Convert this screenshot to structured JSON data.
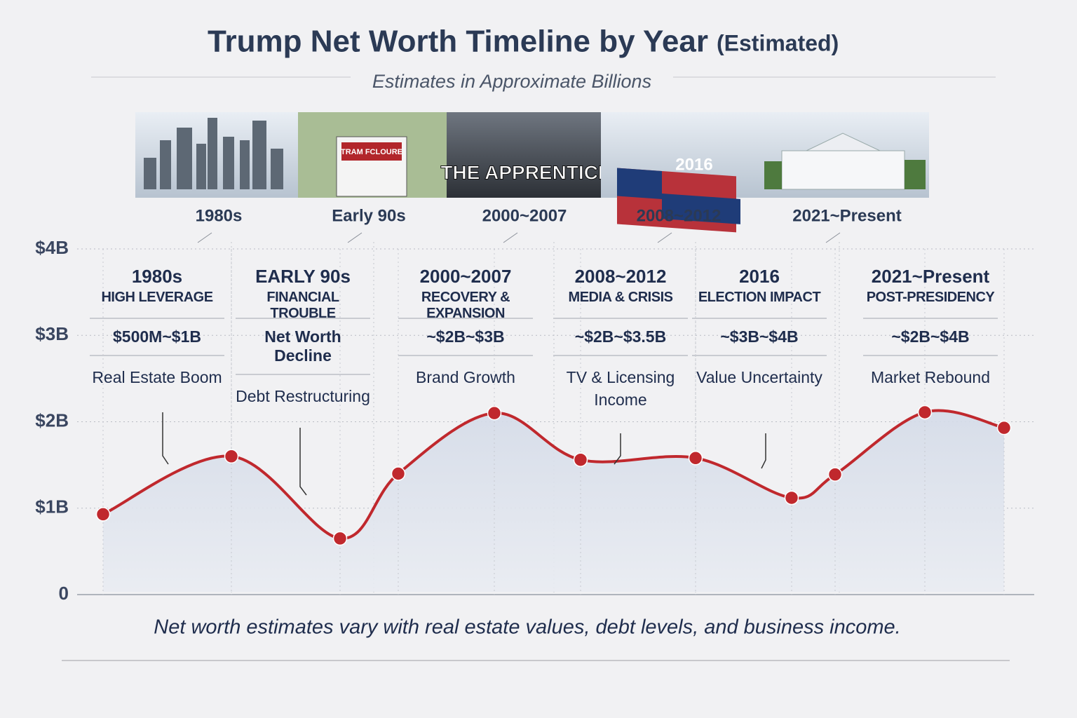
{
  "chart_data": {
    "type": "line",
    "title": "Trump Net Worth Timeline by Year",
    "title_note": "(Estimated)",
    "subtitle": "Estimates in Approximate Billions",
    "timeline": [
      {
        "label": "1980s"
      },
      {
        "label": "Early 90s",
        "sign": "TRAM FCLOURE"
      },
      {
        "label": "2000~2007",
        "banner": "THE APPRENTICE"
      },
      {
        "label": "2008~2012",
        "banner": "2016"
      },
      {
        "label": "2021~Present"
      }
    ],
    "annotations": [
      {
        "era": "1980s",
        "theme": "HIGH LEVERAGE",
        "range": "$500M~$1B",
        "note": "Real Estate Boom"
      },
      {
        "era": "EARLY 90s",
        "theme": "FINANCIAL TROUBLE",
        "range": "Net Worth Decline",
        "note": "Debt Restructuring"
      },
      {
        "era": "2000~2007",
        "theme": "RECOVERY & EXPANSION",
        "range": "~$2B~$3B",
        "note": "Brand Growth"
      },
      {
        "era": "2008~2012",
        "theme": "MEDIA & CRISIS",
        "range": "~$2B~$3.5B",
        "note": "TV & Licensing Income"
      },
      {
        "era": "2016",
        "theme": "ELECTION IMPACT",
        "range": "~$3B~$4B",
        "note": "Value Uncertainty"
      },
      {
        "era": "2021~Present",
        "theme": "POST-PRESIDENCY",
        "range": "~$2B~$4B",
        "note": "Market Rebound"
      }
    ],
    "categories": [
      null,
      null,
      null,
      null,
      null,
      null,
      null,
      null,
      null,
      null,
      null
    ],
    "series": [
      {
        "color": "#c0282d",
        "values": [
          0.93,
          1.6,
          0.65,
          1.4,
          2.1,
          1.56,
          1.58,
          1.12,
          1.39,
          2.11,
          1.93
        ]
      }
    ],
    "ylim": [
      0,
      4
    ],
    "yticks": [
      0,
      {
        "value": 1,
        "label": "$1B"
      },
      {
        "value": 2,
        "label": "$2B"
      },
      {
        "value": 3,
        "label": "$3B"
      },
      {
        "value": 4,
        "label": "$4B"
      }
    ],
    "grid": true,
    "footer": "Net worth estimates vary with real estate values, debt levels, and business income."
  }
}
